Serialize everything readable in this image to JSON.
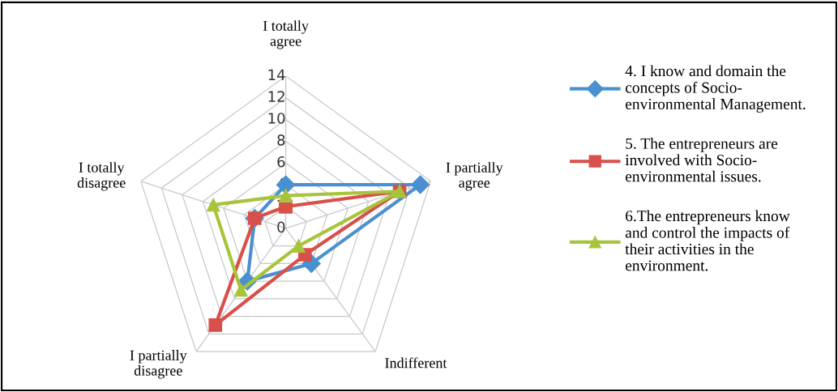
{
  "chart_data": {
    "type": "radar",
    "categories": [
      "I totally agree",
      "I partially agree",
      "Indifferent",
      "I partially disagree",
      "I totally disagree"
    ],
    "ylim": [
      0,
      14
    ],
    "yticks": [
      0,
      2,
      4,
      6,
      8,
      10,
      12,
      14
    ],
    "grid": true,
    "legend": "right",
    "line_style": "solid",
    "series": [
      {
        "name": "4. I know and domain the concepts of Socio-environmental Management.",
        "color": "#4a90d0",
        "marker": "diamond",
        "values": [
          4,
          13,
          4,
          6,
          3
        ]
      },
      {
        "name": "5. The entrepreneurs are involved with Socio-environmental issues.",
        "color": "#d9504a",
        "marker": "square",
        "values": [
          2,
          11,
          3,
          11,
          3
        ]
      },
      {
        "name": "6.The entrepreneurs know and control the impacts of their activities in the environment.",
        "color": "#a8c43c",
        "marker": "triangle",
        "values": [
          3,
          11,
          2,
          7,
          7
        ]
      }
    ]
  }
}
